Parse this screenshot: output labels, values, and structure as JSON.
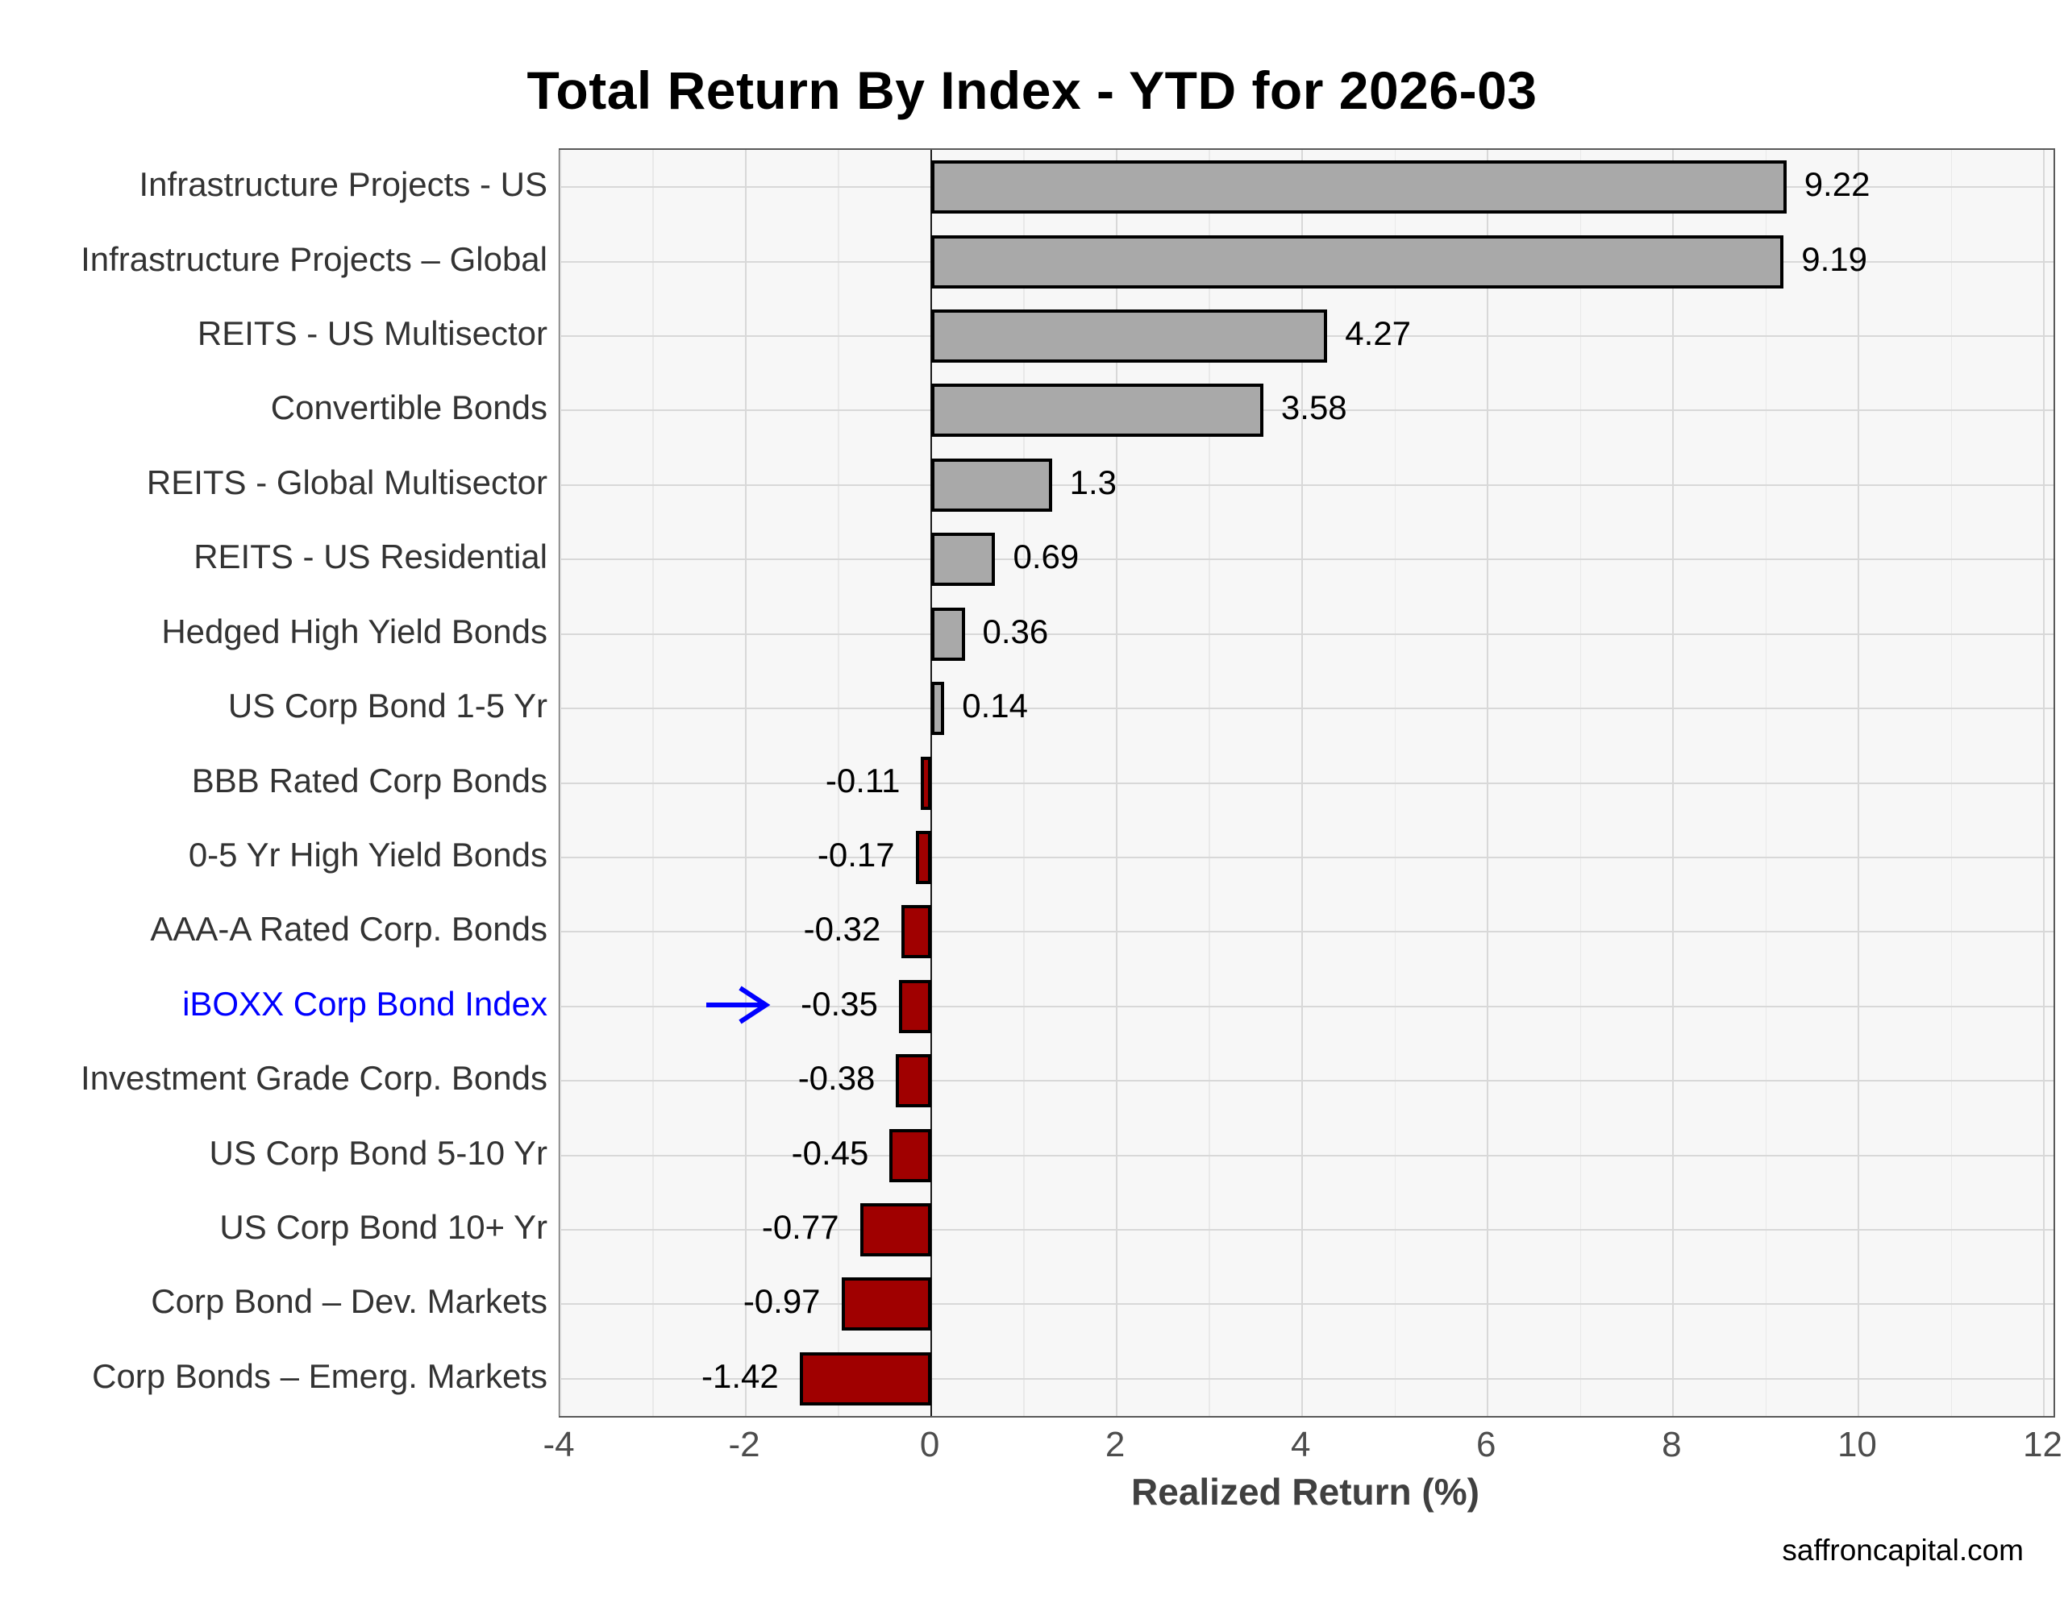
{
  "page": {
    "title": "Total Return By Index - YTD for 2026-03",
    "footer": "saffroncapital.com"
  },
  "chart_data": {
    "type": "bar",
    "orientation": "horizontal",
    "title": "Total Return By Index - YTD for 2026-03",
    "xlabel": "Realized Return (%)",
    "ylabel": "",
    "xlim": [
      -4.0,
      12.1
    ],
    "x_ticks": [
      -4,
      -2,
      0,
      2,
      4,
      6,
      8,
      10,
      12
    ],
    "x_minor_ticks": [
      -3,
      -1,
      1,
      3,
      5,
      7,
      9,
      11
    ],
    "grid": true,
    "categories": [
      "Infrastructure Projects - US",
      "Infrastructure Projects – Global",
      "REITS - US Multisector",
      "Convertible Bonds",
      "REITS - Global Multisector",
      "REITS - US Residential",
      "Hedged High Yield Bonds",
      "US Corp Bond 1-5 Yr",
      "BBB Rated Corp Bonds",
      "0-5 Yr High Yield Bonds",
      "AAA-A Rated Corp. Bonds",
      "iBOXX Corp Bond Index",
      "Investment Grade Corp. Bonds",
      "US Corp Bond 5-10 Yr",
      "US Corp Bond 10+ Yr",
      "Corp Bond – Dev. Markets",
      "Corp Bonds – Emerg. Markets"
    ],
    "values": [
      9.22,
      9.19,
      4.27,
      3.58,
      1.3,
      0.69,
      0.36,
      0.14,
      -0.11,
      -0.17,
      -0.32,
      -0.35,
      -0.38,
      -0.45,
      -0.77,
      -0.97,
      -1.42
    ],
    "value_labels": [
      "9.22",
      "9.19",
      "4.27",
      "3.58",
      "1.3",
      "0.69",
      "0.36",
      "0.14",
      "-0.11",
      "-0.17",
      "-0.32",
      "-0.35",
      "-0.38",
      "-0.45",
      "-0.77",
      "-0.97",
      "-1.42"
    ],
    "colors": {
      "positive_bar": "#a9a9a9",
      "negative_bar": "#a00000",
      "bar_border": "#000000",
      "highlight_blue": "#0000ff",
      "panel_background": "#f7f7f7",
      "major_grid": "#d8d8d8",
      "minor_grid": "#e9e9e9"
    },
    "highlight": {
      "index": 11,
      "label": "iBOXX Corp Bond Index",
      "marker": "blue-arrow-right"
    }
  }
}
